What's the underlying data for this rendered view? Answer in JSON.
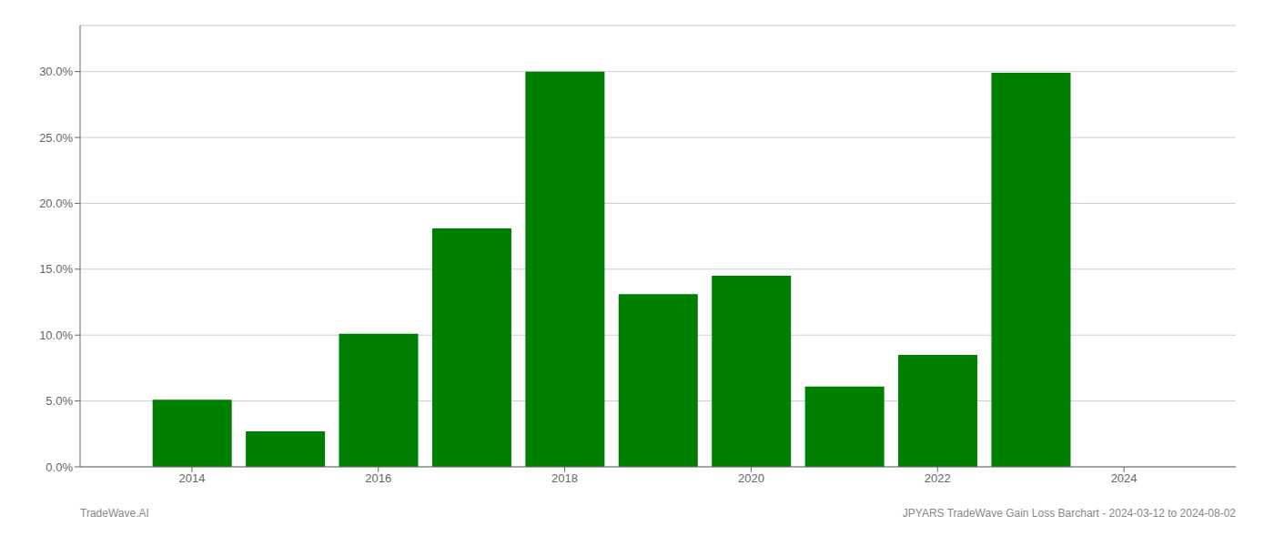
{
  "chart_data": {
    "type": "bar",
    "x": [
      2014,
      2015,
      2016,
      2017,
      2018,
      2019,
      2020,
      2021,
      2022,
      2023
    ],
    "values": [
      0.051,
      0.027,
      0.101,
      0.181,
      0.3,
      0.131,
      0.145,
      0.061,
      0.085,
      0.299
    ],
    "color": "#008000",
    "xlim": [
      2012.8,
      2025.2
    ],
    "xticks": [
      2014,
      2016,
      2018,
      2020,
      2022,
      2024
    ],
    "ylim": [
      0,
      0.335
    ],
    "yticks": [
      {
        "value": 0.0,
        "label": "0.0%"
      },
      {
        "value": 0.05,
        "label": "5.0%"
      },
      {
        "value": 0.1,
        "label": "10.0%"
      },
      {
        "value": 0.15,
        "label": "15.0%"
      },
      {
        "value": 0.2,
        "label": "20.0%"
      },
      {
        "value": 0.25,
        "label": "25.0%"
      },
      {
        "value": 0.3,
        "label": "30.0%"
      }
    ],
    "grid": true,
    "annotations": [
      "TradeWave.AI",
      "JPYARS TradeWave Gain Loss Barchart - 2024-03-12 to 2024-08-02"
    ]
  }
}
